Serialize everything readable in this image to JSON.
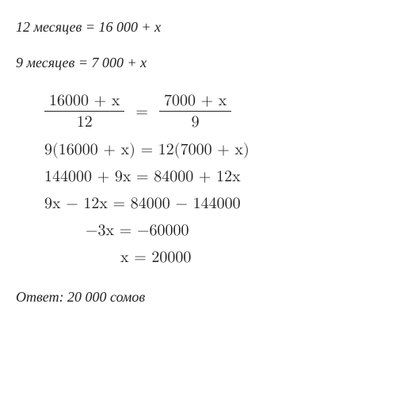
{
  "text_color": "#222222",
  "background_color": "#ffffff",
  "premise_fontsize": 18,
  "math_fontsize": 20,
  "answer_fontsize": 18,
  "premise1": "12 месяцев = 16 000 + х",
  "premise2": "9 месяцев = 7 000 + х",
  "fraction_eq": {
    "left_num": "16000 + x",
    "left_den": "12",
    "right_num": "7000 + x",
    "right_den": "9",
    "sign": "="
  },
  "steps": {
    "s1": "9(16000 + x) = 12(7000 + x)",
    "s2": "144000 + 9x = 84000 + 12x",
    "s3": "9x − 12x = 84000 − 144000",
    "s4": "−3x = −60000",
    "s5": "x = 20000"
  },
  "answer": "Ответ: 20 000 сомов"
}
